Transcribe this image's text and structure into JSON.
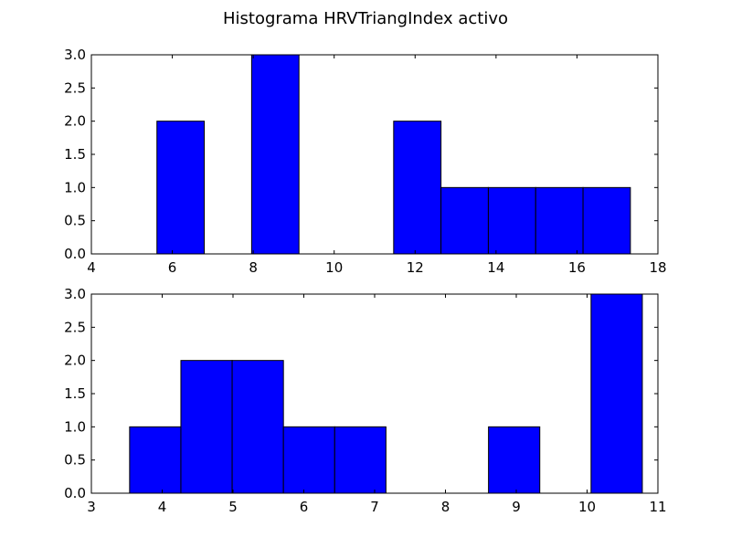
{
  "title": "Histograma HRVTriangIndex activo",
  "colors": {
    "bar_fill": "#0000ff",
    "bar_edge": "#000000",
    "axes": "#000000",
    "background": "#ffffff"
  },
  "chart_data": [
    {
      "type": "bar",
      "title": "",
      "xlabel": "",
      "ylabel": "",
      "xlim": [
        4,
        18
      ],
      "ylim": [
        0,
        3
      ],
      "xticks": [
        "4",
        "6",
        "8",
        "10",
        "12",
        "14",
        "16",
        "18"
      ],
      "yticks": [
        "0.0",
        "0.5",
        "1.0",
        "1.5",
        "2.0",
        "2.5",
        "3.0"
      ],
      "bin_edges": [
        5.62,
        6.79,
        7.96,
        9.13,
        10.3,
        11.47,
        12.64,
        13.81,
        14.98,
        16.15,
        17.32
      ],
      "counts": [
        2,
        0,
        3,
        0,
        0,
        2,
        1,
        1,
        1,
        1
      ],
      "grid": false
    },
    {
      "type": "bar",
      "title": "",
      "xlabel": "",
      "ylabel": "",
      "xlim": [
        3,
        11
      ],
      "ylim": [
        0,
        3
      ],
      "xticks": [
        "3",
        "4",
        "5",
        "6",
        "7",
        "8",
        "9",
        "10",
        "11"
      ],
      "yticks": [
        "0.0",
        "0.5",
        "1.0",
        "1.5",
        "2.0",
        "2.5",
        "3.0"
      ],
      "bin_edges": [
        3.54,
        4.264,
        4.988,
        5.712,
        6.436,
        7.16,
        7.884,
        8.608,
        9.332,
        10.056,
        10.78
      ],
      "counts": [
        1,
        2,
        2,
        1,
        1,
        0,
        0,
        1,
        0,
        3
      ],
      "grid": false
    }
  ]
}
